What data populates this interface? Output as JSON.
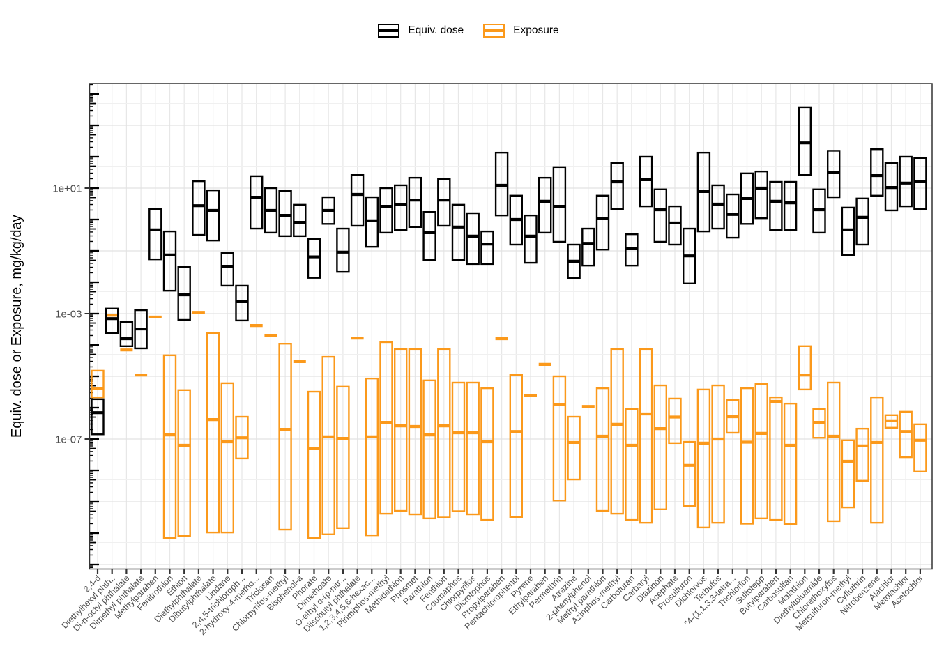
{
  "legend": {
    "items": [
      {
        "label": "Equiv. dose",
        "color": "#000000"
      },
      {
        "label": "Exposure",
        "color": "#FB991B"
      }
    ]
  },
  "y_axis": {
    "title": "Equiv. dose or Exposure, mg/kg/day",
    "tick_labels": [
      "1e+01",
      "1e-03",
      "1e-07"
    ],
    "tick_log10": [
      1,
      -3,
      -7
    ]
  },
  "chart_data": {
    "type": "crossbar-boxplot",
    "title": "",
    "xlabel": "",
    "ylabel": "Equiv. dose or Exposure, mg/kg/day",
    "y_scale": "log10",
    "ylim_log10": [
      -11.2,
      4.35
    ],
    "grid": {
      "major_log10": [
        3,
        1,
        -1,
        -3,
        -5,
        -7,
        -9,
        -11
      ],
      "minor_log10": [
        3.7,
        1.7,
        -0.3,
        -2.3,
        -4.3,
        -6.3,
        -8.3,
        -10.3
      ],
      "vertical_per_category": true
    },
    "legend_position": "top-center",
    "units": "mg/kg/day",
    "note": "box values are [min, median, max] as log10 of mg/kg/day; min==median==max means the box collapses to a dash",
    "categories": [
      "2,4-d",
      "Diethylhexyl phth..",
      "Di-n-octyl phthalate",
      "Dimethyl phthalate",
      "Methylparaben",
      "Fenitrothion",
      "Ethion",
      "Diethylphthalate",
      "Dibutylphthalate",
      "Lindane",
      "2,4,5-trichloroph...",
      "2-hydroxy-4-metho...",
      "Triclosan",
      "Chlorpyrifos-methyl",
      "Bisphenol-a",
      "Phorate",
      "Dimethoate",
      "O-ethyl o-(p-nitr...",
      "Diisobutyl phthalate",
      "1,2,3,4,5,6-hexac...",
      "Pirimiphos-methyl",
      "Methidathion",
      "Phosmet",
      "Parathion",
      "Fenthion",
      "Coumaphos",
      "Chlorpyrifos",
      "Dicrotophos",
      "Propylparaben",
      "Pentachlorophenol",
      "Pyrene",
      "Ethylparaben",
      "Permethrin",
      "Atrazine",
      "2-phenylphenol",
      "Methyl parathion",
      "Azinphos-methyl",
      "Carbofuran",
      "Carbaryl",
      "Diazinon",
      "Acephate",
      "Prosulfuron",
      "Dichlorvos",
      "Terbufos",
      "\"4-(1,1,3,3-tetra...",
      "Trichlorfon",
      "Sulfotepp",
      "Butylparaben",
      "Carbosulfan",
      "Malathion",
      "Diethyltoluamide",
      "Chlorethoxyfos",
      "Metsulfuron-methyl",
      "Cyfluthrin",
      "Nitrobenzene",
      "Alachlor",
      "Metolachlor",
      "Acetochlor"
    ],
    "series": [
      {
        "name": "Equiv. dose",
        "color": "#000000",
        "boxes": [
          [
            -6.85,
            -6.16,
            -5.73
          ],
          [
            -3.62,
            -3.16,
            -2.84
          ],
          [
            -4.04,
            -3.8,
            -3.27
          ],
          [
            -4.11,
            -3.49,
            -2.89
          ],
          [
            -1.27,
            -0.33,
            0.33
          ],
          [
            -2.27,
            -1.13,
            -0.38
          ],
          [
            -3.2,
            -2.4,
            -1.51
          ],
          [
            -0.49,
            0.44,
            1.22
          ],
          [
            -0.67,
            0.29,
            0.93
          ],
          [
            -2.11,
            -1.49,
            -1.07
          ],
          [
            -3.22,
            -2.62,
            -2.11
          ],
          [
            -0.29,
            0.71,
            1.38
          ],
          [
            -0.42,
            0.29,
            1.0
          ],
          [
            -0.53,
            0.13,
            0.91
          ],
          [
            -0.53,
            -0.09,
            0.47
          ],
          [
            -1.86,
            -1.19,
            -0.62
          ],
          [
            -0.14,
            0.29,
            0.71
          ],
          [
            -1.67,
            -1.04,
            -0.29
          ],
          [
            -0.2,
            0.8,
            1.42
          ],
          [
            -0.87,
            -0.04,
            0.71
          ],
          [
            -0.42,
            0.42,
            1.0
          ],
          [
            -0.33,
            0.47,
            1.09
          ],
          [
            -0.24,
            0.62,
            1.33
          ],
          [
            -1.29,
            -0.42,
            0.24
          ],
          [
            -0.2,
            0.62,
            1.29
          ],
          [
            -1.29,
            -0.24,
            0.47
          ],
          [
            -1.42,
            -0.53,
            0.2
          ],
          [
            -1.42,
            -0.78,
            -0.38
          ],
          [
            0.13,
            1.09,
            2.13
          ],
          [
            -0.8,
            0.0,
            0.76
          ],
          [
            -1.38,
            -0.53,
            0.13
          ],
          [
            -0.42,
            0.58,
            1.33
          ],
          [
            -0.71,
            0.42,
            1.67
          ],
          [
            -1.87,
            -1.33,
            -0.8
          ],
          [
            -1.47,
            -0.76,
            -0.29
          ],
          [
            -0.96,
            0.04,
            0.76
          ],
          [
            0.33,
            1.2,
            1.8
          ],
          [
            -1.47,
            -0.93,
            -0.47
          ],
          [
            0.42,
            1.27,
            2.0
          ],
          [
            -0.71,
            0.31,
            0.96
          ],
          [
            -0.8,
            -0.11,
            0.42
          ],
          [
            -2.04,
            -1.16,
            -0.29
          ],
          [
            -0.38,
            0.89,
            2.13
          ],
          [
            -0.29,
            0.49,
            1.09
          ],
          [
            -0.58,
            0.16,
            0.8
          ],
          [
            -0.14,
            0.67,
            1.47
          ],
          [
            0.04,
            1.0,
            1.53
          ],
          [
            -0.33,
            0.58,
            1.2
          ],
          [
            -0.33,
            0.53,
            1.2
          ],
          [
            1.42,
            2.44,
            3.58
          ],
          [
            -0.42,
            0.31,
            0.96
          ],
          [
            0.71,
            1.51,
            2.19
          ],
          [
            -1.13,
            -0.33,
            0.38
          ],
          [
            -0.8,
            0.07,
            0.67
          ],
          [
            0.76,
            1.4,
            2.24
          ],
          [
            0.29,
            1.02,
            1.8
          ],
          [
            0.42,
            1.16,
            2.0
          ],
          [
            0.33,
            1.22,
            1.96
          ]
        ]
      },
      {
        "name": "Exposure",
        "color": "#FB991B",
        "boxes": [
          [
            -5.67,
            -5.38,
            -4.82
          ],
          [
            -3.05,
            -3.05,
            -3.05
          ],
          [
            -4.16,
            -4.16,
            -4.16
          ],
          [
            -4.96,
            -4.96,
            -4.96
          ],
          [
            -3.11,
            -3.11,
            -3.11
          ],
          [
            -10.16,
            -6.87,
            -4.33
          ],
          [
            -10.09,
            -7.2,
            -5.44
          ],
          [
            -2.96,
            -2.96,
            -2.96
          ],
          [
            -9.98,
            -6.38,
            -3.62
          ],
          [
            -9.98,
            -7.09,
            -5.22
          ],
          [
            -7.62,
            -6.96,
            -6.29
          ],
          [
            -3.38,
            -3.38,
            -3.38
          ],
          [
            -3.71,
            -3.71,
            -3.71
          ],
          [
            -9.89,
            -6.69,
            -3.96
          ],
          [
            -4.53,
            -4.53,
            -4.53
          ],
          [
            -10.16,
            -7.31,
            -5.49
          ],
          [
            -10.04,
            -6.93,
            -4.38
          ],
          [
            -9.84,
            -6.98,
            -5.33
          ],
          [
            -3.78,
            -3.78,
            -3.78
          ],
          [
            -10.07,
            -6.93,
            -5.07
          ],
          [
            -9.38,
            -6.47,
            -3.91
          ],
          [
            -9.29,
            -6.58,
            -4.13
          ],
          [
            -9.4,
            -6.6,
            -4.13
          ],
          [
            -9.53,
            -6.87,
            -5.13
          ],
          [
            -9.5,
            -6.58,
            -4.13
          ],
          [
            -9.3,
            -6.8,
            -5.2
          ],
          [
            -9.4,
            -6.8,
            -5.2
          ],
          [
            -9.58,
            -7.09,
            -5.38
          ],
          [
            -3.8,
            -3.8,
            -3.8
          ],
          [
            -9.49,
            -6.76,
            -4.96
          ],
          [
            -5.62,
            -5.62,
            -5.62
          ],
          [
            -4.62,
            -4.62,
            -4.62
          ],
          [
            -8.96,
            -5.91,
            -5.0
          ],
          [
            -8.29,
            -7.11,
            -6.29
          ],
          [
            -5.96,
            -5.96,
            -5.96
          ],
          [
            -9.29,
            -6.91,
            -5.38
          ],
          [
            -9.38,
            -6.53,
            -4.13
          ],
          [
            -9.58,
            -7.2,
            -6.04
          ],
          [
            -9.67,
            -6.2,
            -4.13
          ],
          [
            -9.24,
            -6.67,
            -5.29
          ],
          [
            -7.13,
            -6.3,
            -5.71
          ],
          [
            -9.13,
            -7.84,
            -7.09
          ],
          [
            -9.82,
            -7.13,
            -5.42
          ],
          [
            -9.67,
            -7.0,
            -5.29
          ],
          [
            -6.8,
            -6.29,
            -5.76
          ],
          [
            -9.7,
            -7.1,
            -5.38
          ],
          [
            -9.53,
            -6.82,
            -5.24
          ],
          [
            -9.58,
            -5.8,
            -5.67
          ],
          [
            -9.71,
            -7.2,
            -5.87
          ],
          [
            -5.42,
            -4.96,
            -4.04
          ],
          [
            -6.96,
            -6.47,
            -6.04
          ],
          [
            -9.62,
            -6.91,
            -5.2
          ],
          [
            -9.18,
            -7.71,
            -7.04
          ],
          [
            -8.33,
            -7.22,
            -6.67
          ],
          [
            -9.67,
            -7.11,
            -5.67
          ],
          [
            -6.64,
            -6.42,
            -6.24
          ],
          [
            -7.58,
            -6.76,
            -6.13
          ],
          [
            -8.04,
            -7.04,
            -6.53
          ]
        ]
      }
    ]
  }
}
